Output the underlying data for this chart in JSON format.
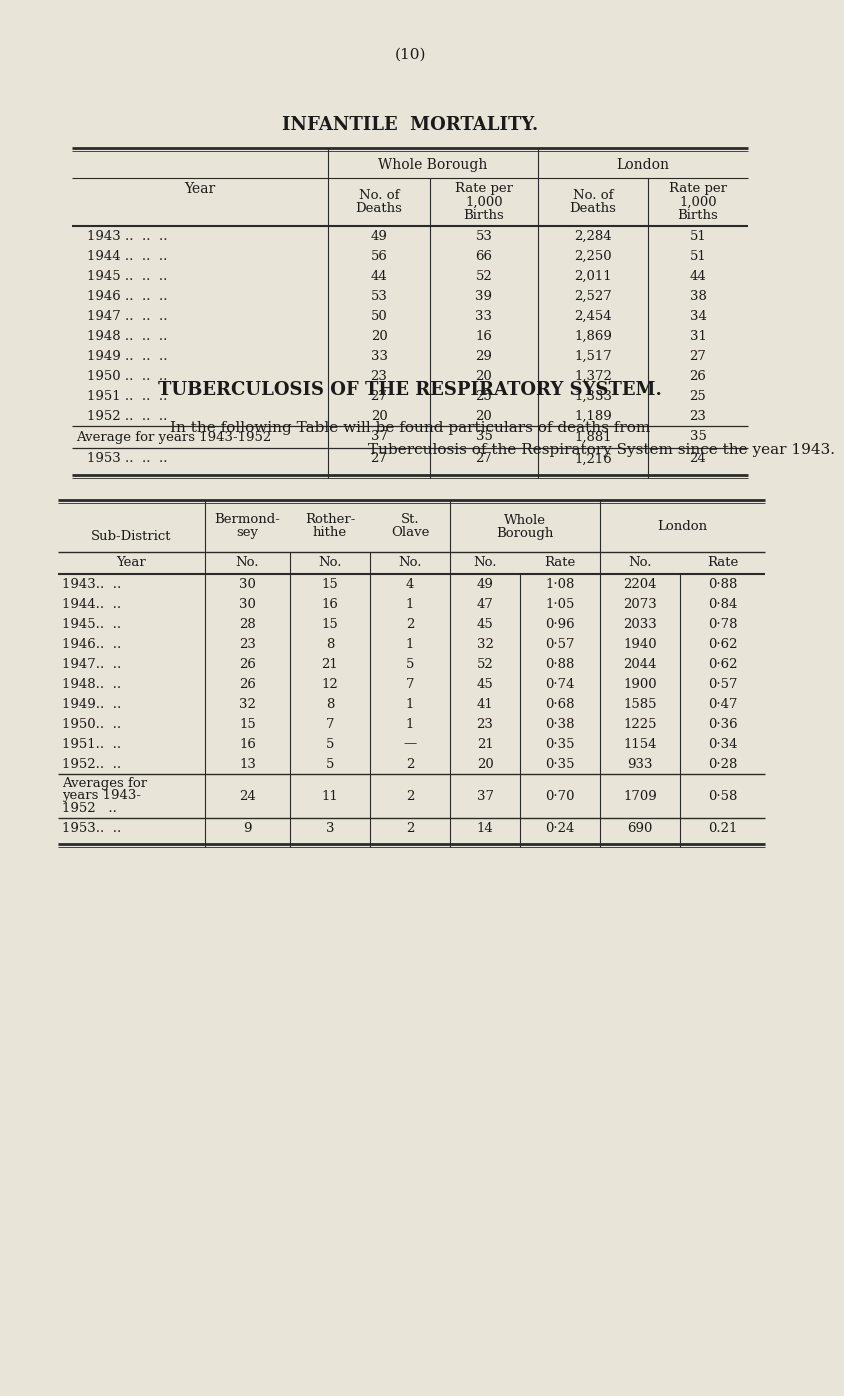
{
  "page_number": "(10)",
  "background_color": "#e8e4d8",
  "table1": {
    "title": "INFANTILE  MORTALITY.",
    "data_rows": [
      [
        "1943 ..  ..  ..",
        "49",
        "53",
        "2,284",
        "51"
      ],
      [
        "1944 ..  ..  ..",
        "56",
        "66",
        "2,250",
        "51"
      ],
      [
        "1945 ..  ..  ..",
        "44",
        "52",
        "2,011",
        "44"
      ],
      [
        "1946 ..  ..  ..",
        "53",
        "39",
        "2,527",
        "38"
      ],
      [
        "1947 ..  ..  ..",
        "50",
        "33",
        "2,454",
        "34"
      ],
      [
        "1948 ..  ..  ..",
        "20",
        "16",
        "1,869",
        "31"
      ],
      [
        "1949 ..  ..  ..",
        "33",
        "29",
        "1,517",
        "27"
      ],
      [
        "1950 ..  ..  ..",
        "23",
        "20",
        "1,372",
        "26"
      ],
      [
        "1951 ..  ..  ..",
        "27",
        "25",
        "1,333",
        "25"
      ],
      [
        "1952 ..  ..  ..",
        "20",
        "20",
        "1,189",
        "23"
      ]
    ],
    "avg_row": [
      "Average for years 1943-1952",
      "37",
      "35",
      "1,881",
      "35"
    ],
    "last_row": [
      "1953 ..  ..  ..",
      "27",
      "27",
      "1,216",
      "24"
    ]
  },
  "section2_title": "TUBERCULOSIS OF THE RESPIRATORY SYSTEM.",
  "section2_text_1": "In the following Table will be found particulars of deaths from",
  "section2_text_2": "Tuberculosis of the Respiratory System since the year 1943.",
  "table2": {
    "data_rows": [
      [
        "1943..  ..",
        "30",
        "15",
        "4",
        "49",
        "1·08",
        "2204",
        "0·88"
      ],
      [
        "1944..  ..",
        "30",
        "16",
        "1",
        "47",
        "1·05",
        "2073",
        "0·84"
      ],
      [
        "1945..  ..",
        "28",
        "15",
        "2",
        "45",
        "0·96",
        "2033",
        "0·78"
      ],
      [
        "1946..  ..",
        "23",
        "8",
        "1",
        "32",
        "0·57",
        "1940",
        "0·62"
      ],
      [
        "1947..  ..",
        "26",
        "21",
        "5",
        "52",
        "0·88",
        "2044",
        "0·62"
      ],
      [
        "1948..  ..",
        "26",
        "12",
        "7",
        "45",
        "0·74",
        "1900",
        "0·57"
      ],
      [
        "1949..  ..",
        "32",
        "8",
        "1",
        "41",
        "0·68",
        "1585",
        "0·47"
      ],
      [
        "1950..  ..",
        "15",
        "7",
        "1",
        "23",
        "0·38",
        "1225",
        "0·36"
      ],
      [
        "1951..  ..",
        "16",
        "5",
        "—",
        "21",
        "0·35",
        "1154",
        "0·34"
      ],
      [
        "1952..  ..",
        "13",
        "5",
        "2",
        "20",
        "0·35",
        "933",
        "0·28"
      ]
    ],
    "avg_row_label": [
      "Averages for",
      "years 1943-",
      "1952   .."
    ],
    "avg_row_data": [
      "24",
      "11",
      "2",
      "37",
      "0·70",
      "1709",
      "0·58"
    ],
    "last_row": [
      "1953..  ..",
      "9",
      "3",
      "2",
      "14",
      "0·24",
      "690",
      "0.21"
    ]
  }
}
